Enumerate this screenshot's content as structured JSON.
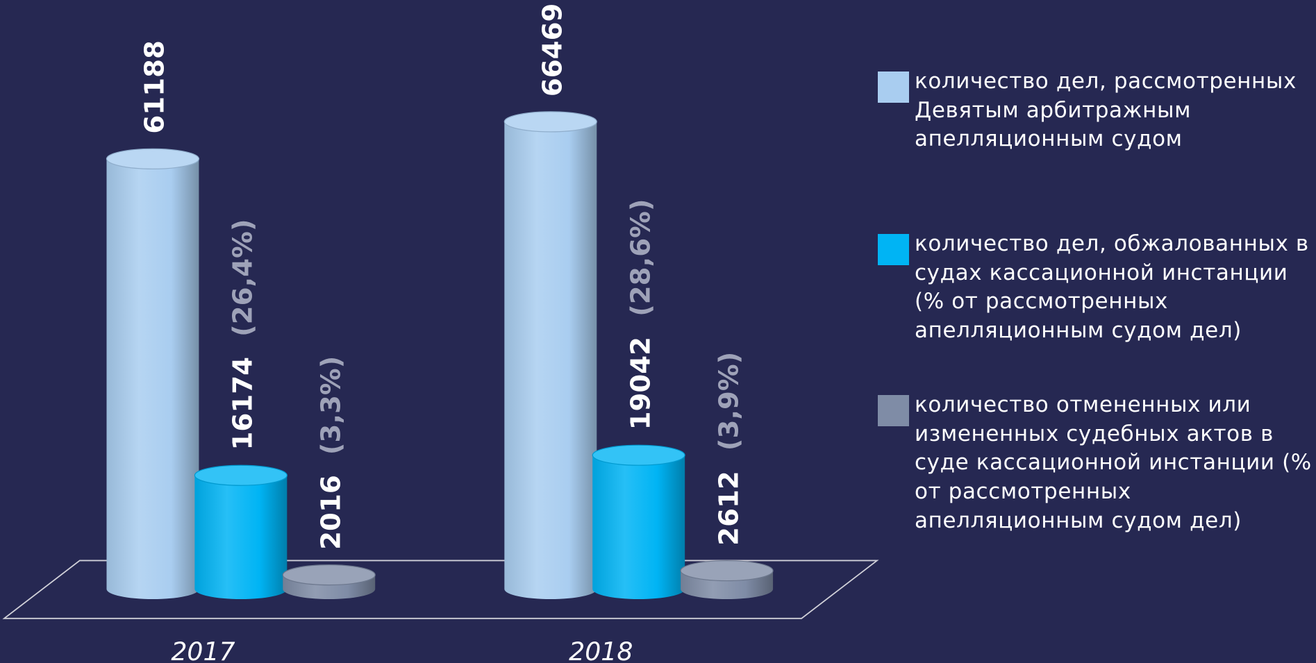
{
  "chart_data": {
    "type": "bar3d",
    "categories": [
      "2017",
      "2018"
    ],
    "series": [
      {
        "name": "количество дел, рассмотренных Девятым арбитражным апелляционным судом",
        "color": "#a9cdf0",
        "values": [
          61188,
          66469
        ]
      },
      {
        "name": "количество дел, обжалованных в судах кассационной инстанции (% от рассмотренных апелляционным судом дел)",
        "color": "#00b4f4",
        "values": [
          16174,
          19042
        ],
        "percent_labels": [
          "(26,4%)",
          "(28,6%)"
        ]
      },
      {
        "name": "количество отмененных или измененных судебных актов в суде кассационной инстанции (% от рассмотренных апелляционным судом дел)",
        "color": "#7f8ca6",
        "values": [
          2016,
          2612
        ],
        "percent_labels": [
          "(3,3%)",
          "(3,9%)"
        ]
      }
    ],
    "legend": "right"
  }
}
